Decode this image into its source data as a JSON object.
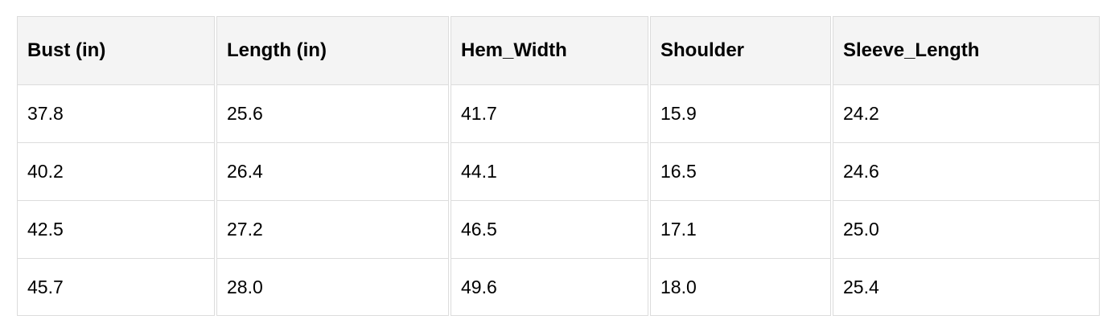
{
  "table": {
    "headers": [
      "Bust (in)",
      "Length (in)",
      "Hem_Width",
      "Shoulder",
      "Sleeve_Length"
    ],
    "rows": [
      [
        "37.8",
        "25.6",
        "41.7",
        "15.9",
        "24.2"
      ],
      [
        "40.2",
        "26.4",
        "44.1",
        "16.5",
        "24.6"
      ],
      [
        "42.5",
        "27.2",
        "46.5",
        "17.1",
        "25.0"
      ],
      [
        "45.7",
        "28.0",
        "49.6",
        "18.0",
        "25.4"
      ]
    ]
  }
}
